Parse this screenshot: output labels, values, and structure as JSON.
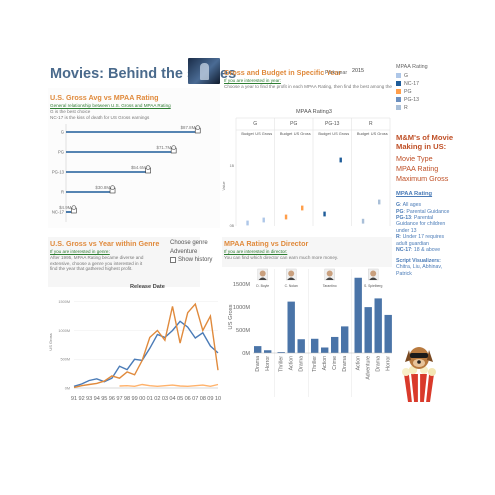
{
  "dashboard": {
    "title": "Movies: Behind the scenes"
  },
  "panel_gross_rating": {
    "title": "U.S. Gross Avg vs MPAA Rating",
    "subtitle": "General relationship between U.S. Gross and MPAA Rating",
    "notes": [
      "G is the best choice",
      "NC-17 is the kiss of death for US Gross earnings"
    ]
  },
  "panel_budget": {
    "title": "Gross and Budget in Specific Year",
    "subtitle": "If you are interested in year:",
    "description": "Choose a year to find the profit in each MPAA Rating, then find the best among them.",
    "pick_year_label": "Pick year",
    "pick_year_value": "2015",
    "chart_header": "MPAA Rating3",
    "y_axis_label": "Value",
    "col_budget": "Budget",
    "col_gross": "US Gross",
    "y_ticks": [
      "1B",
      "0B"
    ]
  },
  "legend": {
    "title": "MPAA Rating",
    "items": [
      {
        "label": "G",
        "color": "#aec7e8"
      },
      {
        "label": "NC-17",
        "color": "#1f5c99"
      },
      {
        "label": "PG",
        "color": "#ff9e4a"
      },
      {
        "label": "PG-13",
        "color": "#6b8fbf"
      },
      {
        "label": "R",
        "color": "#a9bfd8"
      }
    ]
  },
  "sidebar": {
    "mm_title": "M&M's of Movie Making in US:",
    "items": [
      "Movie Type",
      "MPAA Rating",
      "Maximum Gross"
    ],
    "rating_link": "MPAA Rating",
    "definitions": [
      {
        "code": "G",
        "text": ": All ages"
      },
      {
        "code": "PG",
        "text": ": Parental Guidance"
      },
      {
        "code": "PG-13",
        "text": ": Parental Guidance for children under 13"
      },
      {
        "code": "R",
        "text": ": Under 17 requires adult guardian"
      },
      {
        "code": "NC-17",
        "text": ": 18 & above"
      }
    ],
    "credits_label": "Script Visualizers:",
    "credits_names": "Chitra, Liu, Abhinav, Patrick"
  },
  "panel_year_genre": {
    "title": "U.S. Gross vs Year within Genre",
    "subtitle": "If you are interested in genre:",
    "description": "After 1995, MPAA Rating became diverse and extensive, choose a genre you interested in it find the year that gathered highest profit.",
    "genre_label": "Choose genre",
    "genre_value": "Adventure",
    "show_history_label": "Show history",
    "chart_title": "Release Date",
    "y_axis_label": "US Gross",
    "y_ticks": [
      "1500M",
      "1000M",
      "500M",
      "0M"
    ]
  },
  "panel_director": {
    "title": "MPAA Rating vs Director",
    "subtitle": "If you are interested in director:",
    "description": "You can find which director can earn much more money.",
    "y_axis_label": "US Gross",
    "y_ticks": [
      "1500M",
      "1000M",
      "500M",
      "0M"
    ],
    "directors": [
      "D. Boyle",
      "C. Nolan",
      "Tarantino",
      "S. Spielberg"
    ]
  },
  "chart_data": [
    {
      "type": "bar",
      "title": "U.S. Gross Avg vs MPAA Rating",
      "categories": [
        "G",
        "PG",
        "PG-13",
        "R",
        "NC-17"
      ],
      "values": [
        87.8,
        71.7,
        54.6,
        30.8,
        4.9
      ],
      "value_labels": [
        "$87.8M",
        "$71.7M",
        "$54.6M",
        "$30.8M",
        "$4.9M"
      ],
      "category_labels": [
        "G",
        "PG",
        "PG-13",
        "R",
        "NC-17"
      ],
      "xlim": [
        0,
        95
      ],
      "color": "#1f5c99"
    },
    {
      "type": "scatter",
      "title": "MPAA Rating3",
      "categories": [
        "G",
        "PG",
        "PG-13",
        "R"
      ],
      "series": [
        {
          "name": "Budget",
          "values": [
            0.05,
            0.15,
            0.2,
            0.08
          ]
        },
        {
          "name": "US Gross",
          "values": [
            0.1,
            0.3,
            1.1,
            0.4
          ]
        }
      ],
      "colors": [
        "#aec7e8",
        "#ff9e4a",
        "#1f5c99",
        "#a9bfd8"
      ],
      "ylim": [
        0,
        1.5
      ]
    },
    {
      "type": "line",
      "title": "Release Date",
      "categories": [
        "91",
        "92",
        "93",
        "94",
        "95",
        "96",
        "97",
        "98",
        "99",
        "00",
        "01",
        "02",
        "03",
        "04",
        "05",
        "06",
        "07",
        "08",
        "09",
        "10"
      ],
      "series": [
        {
          "values": [
            30,
            70,
            130,
            160,
            110,
            170,
            380,
            320,
            500,
            480,
            690,
            930,
            880,
            1000,
            1160,
            1060,
            870,
            960,
            730,
            610
          ],
          "color": "#4a7bb7"
        },
        {
          "values": [
            10,
            40,
            60,
            80,
            120,
            210,
            170,
            280,
            230,
            480,
            880,
            1000,
            830,
            1420,
            780,
            1310,
            1460,
            1000,
            1250,
            310
          ],
          "color": "#e08a3c"
        },
        {
          "values": [
            null,
            null,
            null,
            null,
            null,
            null,
            35,
            40,
            30,
            60,
            40,
            30,
            40,
            50,
            35,
            30,
            40,
            50,
            30,
            60
          ],
          "color": "#ffb26b"
        }
      ],
      "ylim": [
        0,
        1600
      ]
    },
    {
      "type": "bar",
      "title": "MPAA Rating vs Director",
      "groups": [
        {
          "director": "D. Boyle",
          "categories": [
            "Drama",
            "Horror"
          ],
          "values": [
            150,
            60
          ]
        },
        {
          "director": "C. Nolan",
          "categories": [
            "Thriller",
            "Action",
            "Drama"
          ],
          "values": [
            20,
            1120,
            300
          ]
        },
        {
          "director": "Tarantino",
          "categories": [
            "Thriller",
            "Action",
            "Crime",
            "Drama"
          ],
          "values": [
            310,
            120,
            350,
            580
          ]
        },
        {
          "director": "S. Spielberg",
          "categories": [
            "Action",
            "Adventure",
            "Drama",
            "Horror"
          ],
          "values": [
            1640,
            1000,
            1190,
            830
          ]
        }
      ],
      "ylim": [
        0,
        1700
      ],
      "color": "#4a74a8"
    }
  ]
}
